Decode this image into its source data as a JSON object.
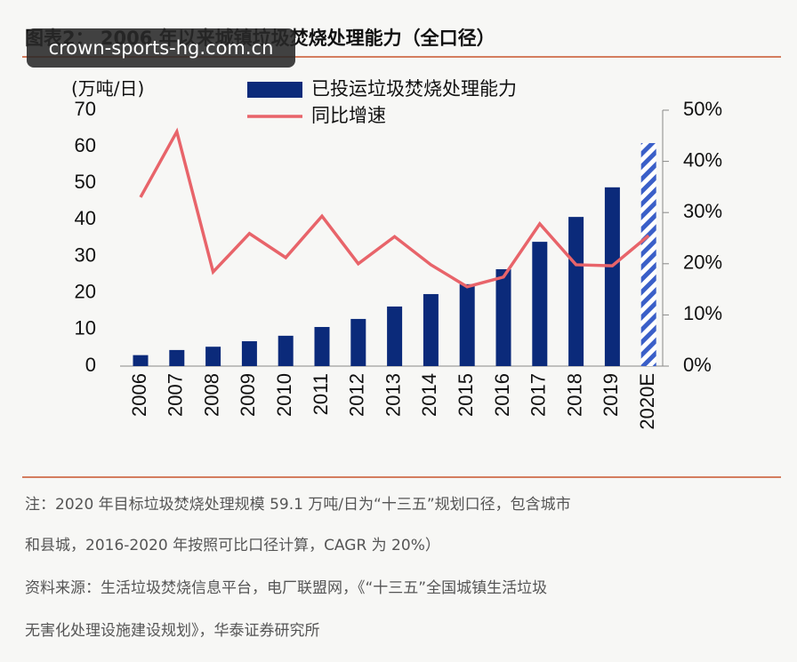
{
  "chart_data": {
    "type": "bar_line",
    "title": "图表2：  2006 年以来城镇垃圾焚烧处理能力（全口径）",
    "watermark": "crown-sports-hg.com.cn",
    "y_axis_label": "(万吨/日)",
    "categories": [
      "2006",
      "2007",
      "2008",
      "2009",
      "2010",
      "2011",
      "2012",
      "2013",
      "2014",
      "2015",
      "2016",
      "2017",
      "2018",
      "2019",
      "2020E"
    ],
    "series": [
      {
        "name": "已投运垃圾焚烧处理能力",
        "type": "bar",
        "color": "#0b2a7a",
        "hatched": [
          14
        ],
        "values": [
          3,
          4.4,
          5.3,
          6.8,
          8.3,
          10.7,
          12.9,
          16.3,
          19.7,
          22.4,
          26.5,
          34,
          40.8,
          48.9,
          61
        ]
      },
      {
        "name": "同比增速",
        "type": "line",
        "axis": "y2",
        "color": "#e8646a",
        "values": [
          33,
          45.8,
          18.4,
          25.9,
          21.2,
          29.3,
          20,
          25.3,
          19.8,
          15.5,
          17.4,
          27.8,
          19.8,
          19.6,
          25.5
        ]
      }
    ],
    "ylim": [
      0,
      70
    ],
    "yticks": [
      0,
      10,
      20,
      30,
      40,
      50,
      60,
      70
    ],
    "y2lim": [
      0,
      50
    ],
    "y2ticks": [
      {
        "value": 0,
        "label": "0%"
      },
      {
        "value": 10,
        "label": "10%"
      },
      {
        "value": 20,
        "label": "20%"
      },
      {
        "value": 30,
        "label": "30%"
      },
      {
        "value": 40,
        "label": "40%"
      },
      {
        "value": 50,
        "label": "50%"
      }
    ],
    "notes": [
      "注：2020 年目标垃圾焚烧处理规模 59.1 万吨/日为“十三五”规划口径，包含城市",
      "和县城，2016-2020 年按照可比口径计算，CAGR 为 20%）",
      "资料来源：生活垃圾焚烧信息平台，电厂联盟网，《“十三五”全国城镇生活垃圾",
      "无害化处理设施建设规划》，华泰证券研究所"
    ]
  }
}
